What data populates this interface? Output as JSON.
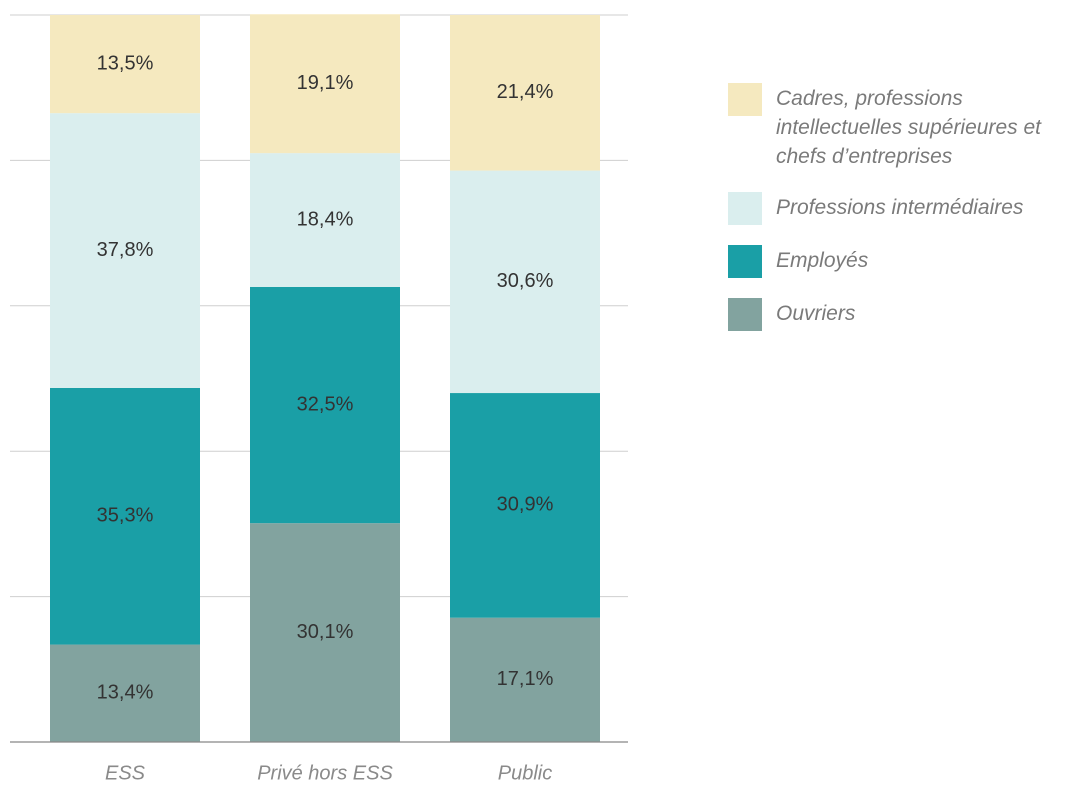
{
  "chart_data": {
    "type": "stacked_bar",
    "categories": [
      "ESS",
      "Privé hors ESS",
      "Public"
    ],
    "series": [
      {
        "name": "Ouvriers",
        "color": "#82a39f",
        "values": [
          13.4,
          30.1,
          17.1
        ],
        "value_labels": [
          "13,4%",
          "30,1%",
          "17,1%"
        ]
      },
      {
        "name": "Employés",
        "color": "#1a9fa6",
        "values": [
          35.3,
          32.5,
          30.9
        ],
        "value_labels": [
          "35,3%",
          "32,5%",
          "30,9%"
        ]
      },
      {
        "name": "Professions intermédiaires",
        "color": "#daeeee",
        "values": [
          37.8,
          18.4,
          30.6
        ],
        "value_labels": [
          "37,8%",
          "18,4%",
          "30,6%"
        ]
      },
      {
        "name": "Cadres, professions intellectuelles supérieures et chefs d’entreprises",
        "color": "#f5e9bf",
        "values": [
          13.5,
          19.1,
          21.4
        ],
        "value_labels": [
          "13,5%",
          "19,1%",
          "21,4%"
        ]
      }
    ],
    "ylim": [
      0,
      100
    ],
    "yticks": [
      0,
      20,
      40,
      60,
      80,
      100
    ],
    "grid": true
  }
}
